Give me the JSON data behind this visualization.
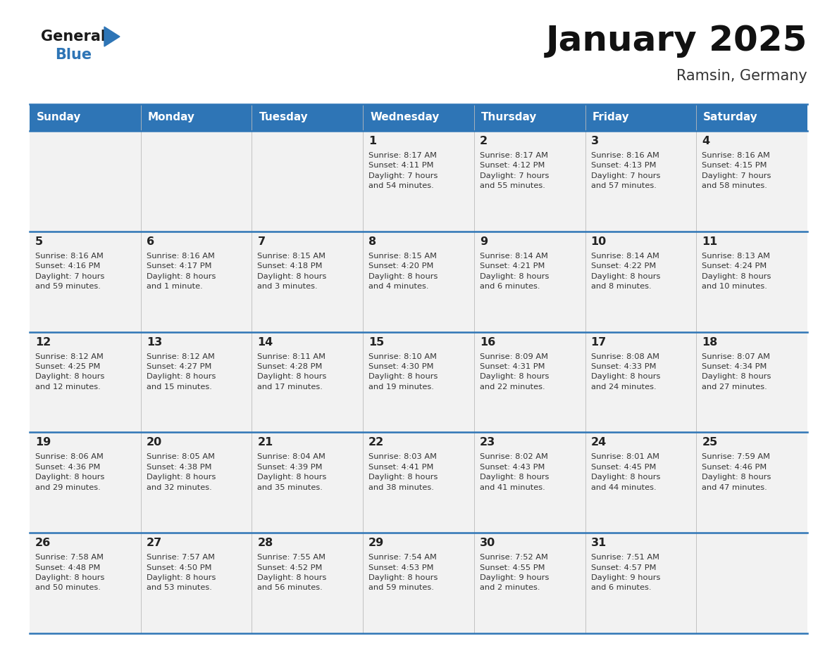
{
  "title": "January 2025",
  "subtitle": "Ramsin, Germany",
  "days_of_week": [
    "Sunday",
    "Monday",
    "Tuesday",
    "Wednesday",
    "Thursday",
    "Friday",
    "Saturday"
  ],
  "header_bg": "#2E75B6",
  "header_text": "#FFFFFF",
  "row_bg_light": "#F2F2F2",
  "row_bg_white": "#FFFFFF",
  "cell_text_color": "#333333",
  "divider_color": "#2E75B6",
  "logo_general_color": "#1a1a1a",
  "logo_blue_color": "#2E75B6",
  "calendar_data": [
    [
      {
        "day": "",
        "sunrise": "",
        "sunset": "",
        "daylight": ""
      },
      {
        "day": "",
        "sunrise": "",
        "sunset": "",
        "daylight": ""
      },
      {
        "day": "",
        "sunrise": "",
        "sunset": "",
        "daylight": ""
      },
      {
        "day": "1",
        "sunrise": "8:17 AM",
        "sunset": "4:11 PM",
        "daylight": "7 hours\nand 54 minutes."
      },
      {
        "day": "2",
        "sunrise": "8:17 AM",
        "sunset": "4:12 PM",
        "daylight": "7 hours\nand 55 minutes."
      },
      {
        "day": "3",
        "sunrise": "8:16 AM",
        "sunset": "4:13 PM",
        "daylight": "7 hours\nand 57 minutes."
      },
      {
        "day": "4",
        "sunrise": "8:16 AM",
        "sunset": "4:15 PM",
        "daylight": "7 hours\nand 58 minutes."
      }
    ],
    [
      {
        "day": "5",
        "sunrise": "8:16 AM",
        "sunset": "4:16 PM",
        "daylight": "7 hours\nand 59 minutes."
      },
      {
        "day": "6",
        "sunrise": "8:16 AM",
        "sunset": "4:17 PM",
        "daylight": "8 hours\nand 1 minute."
      },
      {
        "day": "7",
        "sunrise": "8:15 AM",
        "sunset": "4:18 PM",
        "daylight": "8 hours\nand 3 minutes."
      },
      {
        "day": "8",
        "sunrise": "8:15 AM",
        "sunset": "4:20 PM",
        "daylight": "8 hours\nand 4 minutes."
      },
      {
        "day": "9",
        "sunrise": "8:14 AM",
        "sunset": "4:21 PM",
        "daylight": "8 hours\nand 6 minutes."
      },
      {
        "day": "10",
        "sunrise": "8:14 AM",
        "sunset": "4:22 PM",
        "daylight": "8 hours\nand 8 minutes."
      },
      {
        "day": "11",
        "sunrise": "8:13 AM",
        "sunset": "4:24 PM",
        "daylight": "8 hours\nand 10 minutes."
      }
    ],
    [
      {
        "day": "12",
        "sunrise": "8:12 AM",
        "sunset": "4:25 PM",
        "daylight": "8 hours\nand 12 minutes."
      },
      {
        "day": "13",
        "sunrise": "8:12 AM",
        "sunset": "4:27 PM",
        "daylight": "8 hours\nand 15 minutes."
      },
      {
        "day": "14",
        "sunrise": "8:11 AM",
        "sunset": "4:28 PM",
        "daylight": "8 hours\nand 17 minutes."
      },
      {
        "day": "15",
        "sunrise": "8:10 AM",
        "sunset": "4:30 PM",
        "daylight": "8 hours\nand 19 minutes."
      },
      {
        "day": "16",
        "sunrise": "8:09 AM",
        "sunset": "4:31 PM",
        "daylight": "8 hours\nand 22 minutes."
      },
      {
        "day": "17",
        "sunrise": "8:08 AM",
        "sunset": "4:33 PM",
        "daylight": "8 hours\nand 24 minutes."
      },
      {
        "day": "18",
        "sunrise": "8:07 AM",
        "sunset": "4:34 PM",
        "daylight": "8 hours\nand 27 minutes."
      }
    ],
    [
      {
        "day": "19",
        "sunrise": "8:06 AM",
        "sunset": "4:36 PM",
        "daylight": "8 hours\nand 29 minutes."
      },
      {
        "day": "20",
        "sunrise": "8:05 AM",
        "sunset": "4:38 PM",
        "daylight": "8 hours\nand 32 minutes."
      },
      {
        "day": "21",
        "sunrise": "8:04 AM",
        "sunset": "4:39 PM",
        "daylight": "8 hours\nand 35 minutes."
      },
      {
        "day": "22",
        "sunrise": "8:03 AM",
        "sunset": "4:41 PM",
        "daylight": "8 hours\nand 38 minutes."
      },
      {
        "day": "23",
        "sunrise": "8:02 AM",
        "sunset": "4:43 PM",
        "daylight": "8 hours\nand 41 minutes."
      },
      {
        "day": "24",
        "sunrise": "8:01 AM",
        "sunset": "4:45 PM",
        "daylight": "8 hours\nand 44 minutes."
      },
      {
        "day": "25",
        "sunrise": "7:59 AM",
        "sunset": "4:46 PM",
        "daylight": "8 hours\nand 47 minutes."
      }
    ],
    [
      {
        "day": "26",
        "sunrise": "7:58 AM",
        "sunset": "4:48 PM",
        "daylight": "8 hours\nand 50 minutes."
      },
      {
        "day": "27",
        "sunrise": "7:57 AM",
        "sunset": "4:50 PM",
        "daylight": "8 hours\nand 53 minutes."
      },
      {
        "day": "28",
        "sunrise": "7:55 AM",
        "sunset": "4:52 PM",
        "daylight": "8 hours\nand 56 minutes."
      },
      {
        "day": "29",
        "sunrise": "7:54 AM",
        "sunset": "4:53 PM",
        "daylight": "8 hours\nand 59 minutes."
      },
      {
        "day": "30",
        "sunrise": "7:52 AM",
        "sunset": "4:55 PM",
        "daylight": "9 hours\nand 2 minutes."
      },
      {
        "day": "31",
        "sunrise": "7:51 AM",
        "sunset": "4:57 PM",
        "daylight": "9 hours\nand 6 minutes."
      },
      {
        "day": "",
        "sunrise": "",
        "sunset": "",
        "daylight": ""
      }
    ]
  ]
}
